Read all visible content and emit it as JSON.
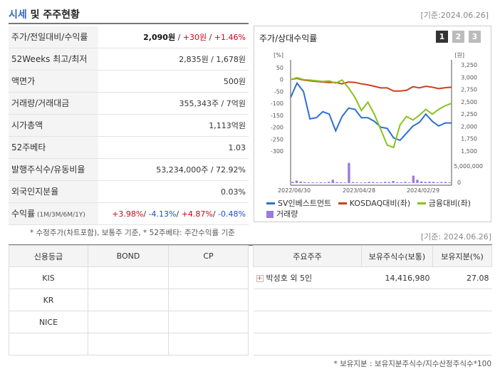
{
  "header": {
    "title_part1": "시세",
    "title_part2": " 및 주주현황",
    "date": "[기준:2024.06.26]"
  },
  "info_rows": [
    {
      "label": "주가/전일대비/수익률",
      "parts": [
        {
          "text": "2,090원",
          "cls": "bold"
        },
        {
          "text": " / "
        },
        {
          "text": "+30원",
          "cls": "red"
        },
        {
          "text": " / "
        },
        {
          "text": "+1.46%",
          "cls": "red"
        }
      ]
    },
    {
      "label": "52Weeks 최고/최저",
      "parts": [
        {
          "text": "2,835원 / 1,678원"
        }
      ]
    },
    {
      "label": "액면가",
      "parts": [
        {
          "text": "500원"
        }
      ]
    },
    {
      "label": "거래량/거래대금",
      "parts": [
        {
          "text": "355,343주 / 7억원"
        }
      ]
    },
    {
      "label": "시가총액",
      "parts": [
        {
          "text": "1,113억원"
        }
      ]
    },
    {
      "label": "52주베타",
      "parts": [
        {
          "text": "1.03"
        }
      ]
    },
    {
      "label": "발행주식수/유동비율",
      "parts": [
        {
          "text": "53,234,000주 / 72.92%"
        }
      ]
    },
    {
      "label": "외국인지분율",
      "parts": [
        {
          "text": "0.03%"
        }
      ]
    },
    {
      "label": "수익률",
      "label_small": " (1M/3M/6M/1Y)",
      "parts": [
        {
          "text": "+3.98%",
          "cls": "red"
        },
        {
          "text": "/ "
        },
        {
          "text": "-4.13%",
          "cls": "blue"
        },
        {
          "text": "/ "
        },
        {
          "text": "+4.87%",
          "cls": "red"
        },
        {
          "text": "/ "
        },
        {
          "text": "-0.48%",
          "cls": "blue"
        }
      ]
    }
  ],
  "note1": "* 수정주가(차트포함), 보통주 기준, * 52주베타: 주간수익률 기준",
  "chart_panel": {
    "title": "주가/상대수익률",
    "tabs": [
      "1",
      "2",
      "3"
    ]
  },
  "chart_data": {
    "type": "line",
    "left_unit": "[%]",
    "right_unit": "[원]",
    "left_ticks": [
      "50",
      "0",
      "-50",
      "-100",
      "-150",
      "-200",
      "-250",
      "-300"
    ],
    "right_ticks": [
      "3,250",
      "3,000",
      "2,750",
      "2,500",
      "2,250",
      "2,000",
      "1,750",
      "1,500"
    ],
    "volume_tick": "5,000,000",
    "volume_zero": "0",
    "x_ticks": [
      "2022/06/30",
      "2023/04/28",
      "2024/02/29"
    ],
    "ylim": [
      -300,
      50
    ],
    "series": [
      {
        "name": "SV인베스트먼트",
        "color": "#2e6fcf",
        "values": [
          -75,
          -15,
          -50,
          -165,
          -160,
          -135,
          -145,
          -215,
          -155,
          -120,
          -125,
          -160,
          -160,
          -175,
          -200,
          -205,
          -245,
          -255,
          -225,
          -195,
          -180,
          -145,
          -175,
          -195,
          -182,
          -182
        ]
      },
      {
        "name": "KOSDAQ대비(좌)",
        "color": "#c9431c",
        "values": [
          0,
          5,
          -2,
          -5,
          -8,
          -10,
          -12,
          -12,
          -18,
          -10,
          -12,
          -18,
          -22,
          -28,
          -35,
          -35,
          -48,
          -48,
          -45,
          -30,
          -35,
          -28,
          -32,
          -38,
          -34,
          -32
        ]
      },
      {
        "name": "금융대비(좌)",
        "color": "#88c21e",
        "values": [
          0,
          8,
          0,
          -2,
          -5,
          -8,
          -6,
          -15,
          -2,
          -35,
          -75,
          -130,
          -95,
          -145,
          -210,
          -275,
          -285,
          -190,
          -155,
          -170,
          -150,
          -125,
          -145,
          -125,
          -110,
          -100
        ]
      }
    ],
    "volume": {
      "name": "거래량",
      "color": "#9b7be0",
      "values": [
        0.3,
        0.6,
        0.35,
        0.25,
        0.2,
        0.2,
        0.15,
        0.2,
        0.15,
        0.3,
        0.8,
        0.25,
        0.2,
        0.15,
        4.9,
        0.25,
        0.2,
        0.15,
        0.2,
        0.3,
        0.25,
        0.2,
        0.2,
        0.3,
        0.25,
        0.5,
        0.2,
        0.2,
        0.3,
        0.15,
        1.8,
        0.8,
        0.4,
        0.3,
        0.35,
        0.3,
        0.2,
        0.25,
        0.3,
        0.2
      ]
    }
  },
  "legend": {
    "items": [
      "SV인베스트먼트",
      "KOSDAQ대비(좌)",
      "금융대비(좌)"
    ],
    "volume": "거래량"
  },
  "date2": "[기준: 2024.06.26]",
  "credit_table": {
    "headers": [
      "신용등급",
      "BOND",
      "CP"
    ],
    "rows": [
      "KIS",
      "KR",
      "NICE",
      ""
    ]
  },
  "holders_table": {
    "headers": [
      "주요주주",
      "보유주식수(보통)",
      "보유지분(%)"
    ],
    "rows": [
      {
        "name": "박성호 외 5인",
        "shares": "14,416,980",
        "pct": "27.08"
      },
      {
        "name": "",
        "shares": "",
        "pct": ""
      },
      {
        "name": "",
        "shares": "",
        "pct": ""
      },
      {
        "name": "",
        "shares": "",
        "pct": ""
      }
    ]
  },
  "note2": "* 보유지분 : 보유지분주식수/지수산정주식수*100"
}
